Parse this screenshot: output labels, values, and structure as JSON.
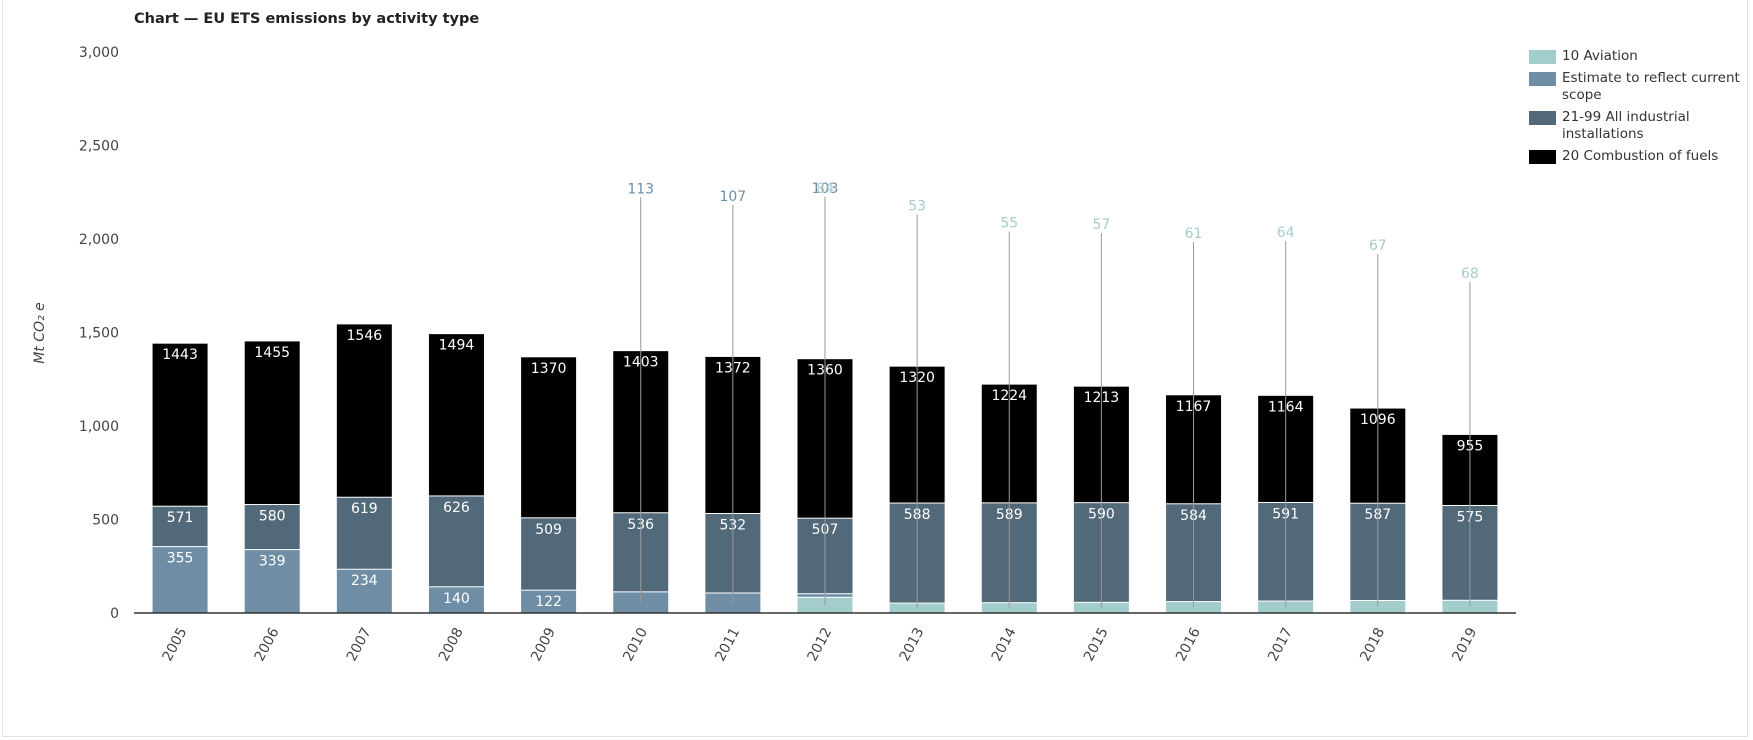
{
  "chart_data": {
    "type": "bar",
    "stacked": true,
    "title": "Chart — EU ETS emissions by activity type",
    "ylabel": "Mt CO₂ e",
    "ylim": [
      0,
      3000
    ],
    "yticks": [
      "0",
      "500",
      "1,000",
      "1,500",
      "2,000",
      "2,500",
      "3,000"
    ],
    "ytick_values": [
      0,
      500,
      1000,
      1500,
      2000,
      2500,
      3000
    ],
    "categories": [
      "2005",
      "2006",
      "2007",
      "2008",
      "2009",
      "2010",
      "2011",
      "2012",
      "2013",
      "2014",
      "2015",
      "2016",
      "2017",
      "2018",
      "2019"
    ],
    "legend_position": "top-right",
    "grid": false,
    "series": [
      {
        "name": "20 Combustion of fuels",
        "color": "#000000",
        "values": [
          1443,
          1455,
          1546,
          1494,
          1370,
          1403,
          1372,
          1360,
          1320,
          1224,
          1213,
          1167,
          1164,
          1096,
          955
        ]
      },
      {
        "name": "21-99 All industrial installations",
        "color": "#52697a",
        "values": [
          571,
          580,
          619,
          626,
          509,
          536,
          532,
          507,
          588,
          589,
          590,
          584,
          591,
          587,
          575
        ]
      },
      {
        "name": "Estimate to reflect current scope",
        "color": "#6f8ea6",
        "values": [
          355,
          339,
          234,
          140,
          122,
          113,
          107,
          103,
          null,
          null,
          null,
          null,
          null,
          null,
          null
        ]
      },
      {
        "name": "10 Aviation",
        "color": "#a3cdcd",
        "values": [
          null,
          null,
          null,
          null,
          null,
          null,
          null,
          84,
          53,
          55,
          57,
          61,
          64,
          67,
          68
        ]
      }
    ]
  }
}
